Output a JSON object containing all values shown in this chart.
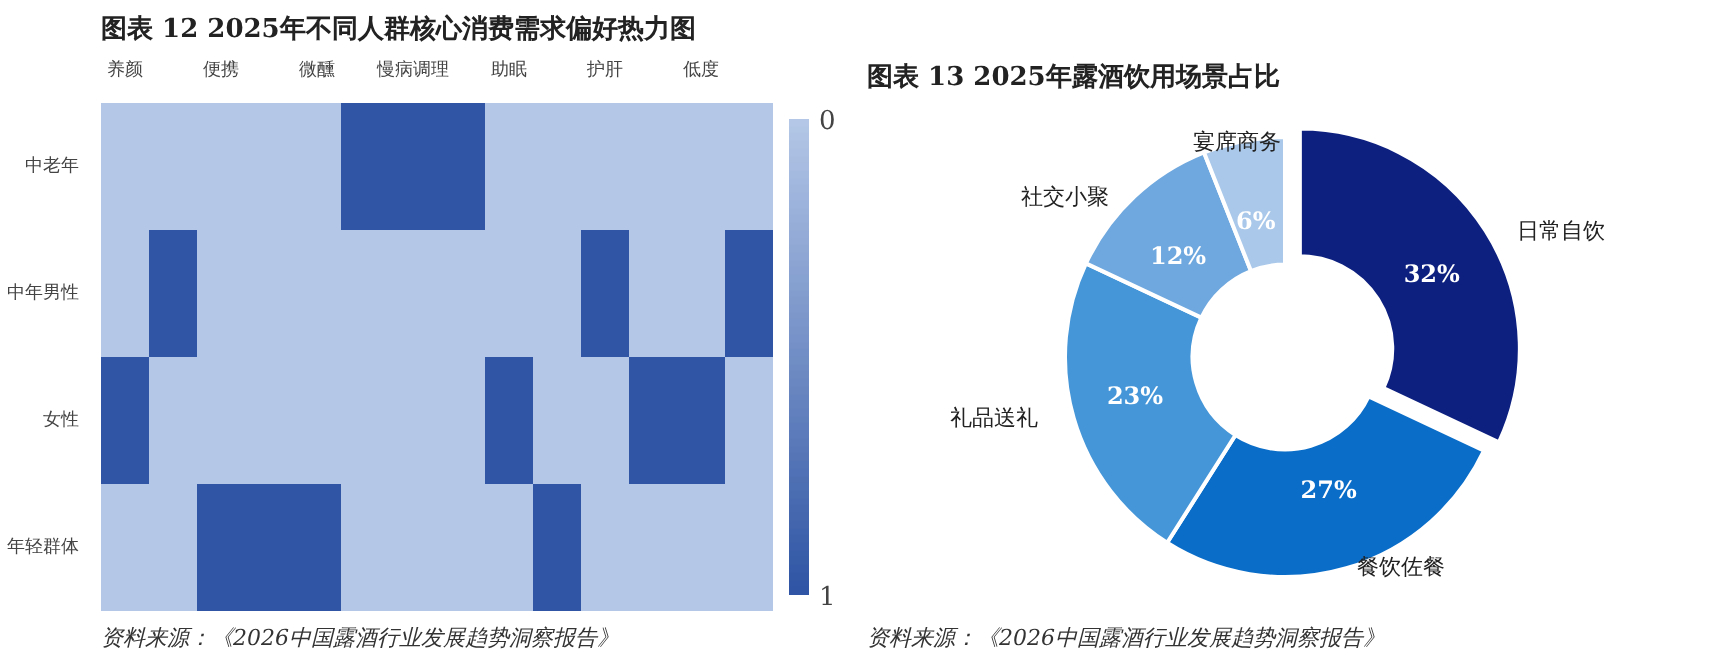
{
  "chart_data": [
    {
      "type": "heatmap",
      "title": "图表 12  2025年不同人群核心消费需求偏好热力图",
      "categories": [
        "养颜",
        null,
        "便携",
        null,
        "微醺",
        null,
        "慢病调理",
        null,
        "助眠",
        null,
        "护肝",
        null,
        "低度",
        null
      ],
      "y_categories": [
        "中老年",
        "中年男性",
        "女性",
        "年轻群体"
      ],
      "cells": [
        [
          0,
          0,
          0,
          0,
          0,
          1,
          1,
          1,
          0,
          0,
          0,
          0,
          0,
          0
        ],
        [
          0,
          1,
          0,
          0,
          0,
          0,
          0,
          0,
          0,
          0,
          1,
          0,
          0,
          1
        ],
        [
          1,
          0,
          0,
          0,
          0,
          0,
          0,
          0,
          1,
          0,
          0,
          1,
          1,
          0
        ],
        [
          0,
          0,
          1,
          1,
          1,
          0,
          0,
          0,
          0,
          1,
          0,
          0,
          0,
          0
        ]
      ],
      "clim": [
        0,
        1
      ],
      "cticks": [
        0,
        1
      ],
      "colors": [
        "#b4c7e7",
        "#2f55a4"
      ],
      "annotations": [
        "资料来源：《2026中国露酒行业发展趋势洞察报告》"
      ]
    },
    {
      "type": "donut",
      "title": "图表 13  2025年露酒饮用场景占比",
      "categories": [
        "日常自饮",
        "餐饮佐餐",
        "礼品送礼",
        "社交小聚",
        "宴席商务"
      ],
      "values": [
        32,
        27,
        23,
        12,
        6
      ],
      "colors": [
        "#0d2080",
        "#0a6dc8",
        "#4596d8",
        "#6fa8de",
        "#a9c8ea"
      ],
      "value_labels": [
        "32%",
        "27%",
        "23%",
        "12%",
        "6%"
      ],
      "annotations": [
        "资料来源：《2026中国露酒行业发展趋势洞察报告》"
      ]
    }
  ]
}
